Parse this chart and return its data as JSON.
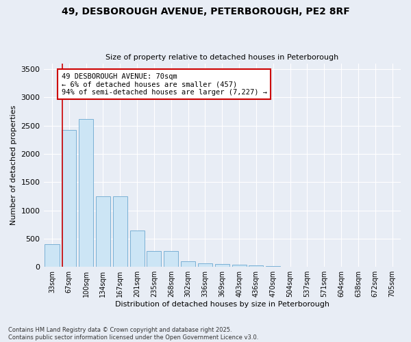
{
  "title": "49, DESBOROUGH AVENUE, PETERBOROUGH, PE2 8RF",
  "subtitle": "Size of property relative to detached houses in Peterborough",
  "xlabel": "Distribution of detached houses by size in Peterborough",
  "ylabel": "Number of detached properties",
  "categories": [
    "33sqm",
    "67sqm",
    "100sqm",
    "134sqm",
    "167sqm",
    "201sqm",
    "235sqm",
    "268sqm",
    "302sqm",
    "336sqm",
    "369sqm",
    "403sqm",
    "436sqm",
    "470sqm",
    "504sqm",
    "537sqm",
    "571sqm",
    "604sqm",
    "638sqm",
    "672sqm",
    "705sqm"
  ],
  "values": [
    400,
    2420,
    2620,
    1250,
    1250,
    640,
    280,
    280,
    100,
    60,
    50,
    40,
    30,
    20,
    0,
    0,
    0,
    0,
    0,
    0,
    0
  ],
  "bar_color": "#cce5f5",
  "bar_edge_color": "#7ab0d4",
  "bg_color": "#e8edf5",
  "grid_color": "#ffffff",
  "vline_color": "#cc0000",
  "vline_x": 0.6,
  "annotation_box_text": "49 DESBOROUGH AVENUE: 70sqm\n← 6% of detached houses are smaller (457)\n94% of semi-detached houses are larger (7,227) →",
  "annotation_box_color": "#cc0000",
  "annotation_box_fill": "#ffffff",
  "ylim": [
    0,
    3600
  ],
  "yticks": [
    0,
    500,
    1000,
    1500,
    2000,
    2500,
    3000,
    3500
  ],
  "footnote": "Contains HM Land Registry data © Crown copyright and database right 2025.\nContains public sector information licensed under the Open Government Licence v3.0."
}
